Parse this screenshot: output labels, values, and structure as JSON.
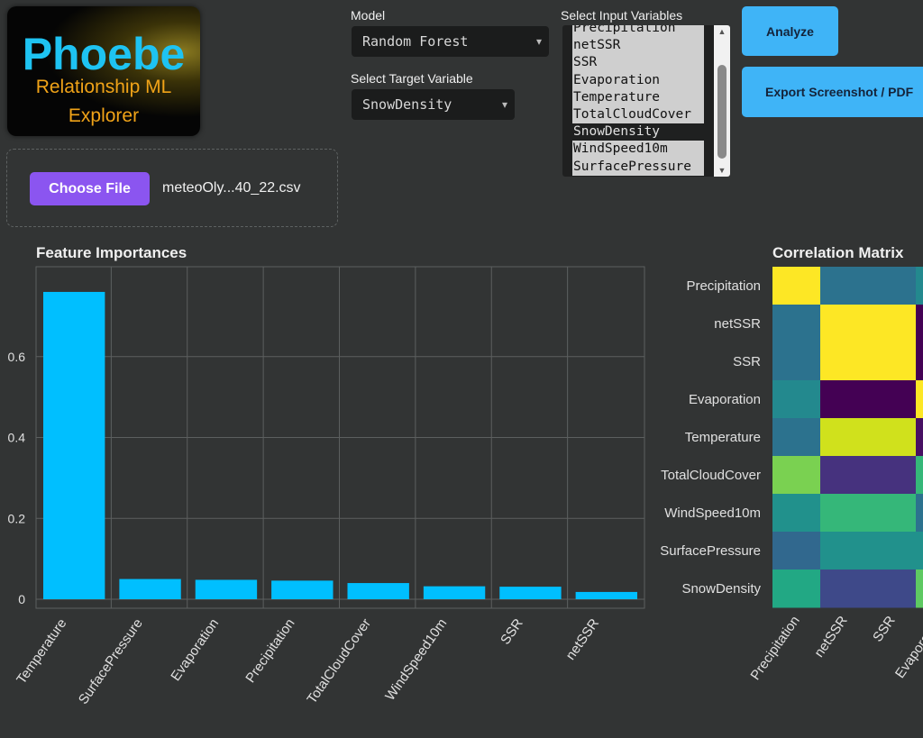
{
  "logo": {
    "title": "Phoebe",
    "subtitle_line1": "Relationship ML",
    "subtitle_line2": "Explorer"
  },
  "file": {
    "button_label": "Choose File",
    "filename": "meteoOly...40_22.csv"
  },
  "model": {
    "label": "Model",
    "selected": "Random Forest"
  },
  "target": {
    "label": "Select Target Variable",
    "selected": "SnowDensity"
  },
  "inputs": {
    "label": "Select Input Variables",
    "options": [
      {
        "name": "Precipitation",
        "selected": true
      },
      {
        "name": "netSSR",
        "selected": true
      },
      {
        "name": "SSR",
        "selected": true
      },
      {
        "name": "Evaporation",
        "selected": true
      },
      {
        "name": "Temperature",
        "selected": true
      },
      {
        "name": "TotalCloudCover",
        "selected": true
      },
      {
        "name": "SnowDensity",
        "selected": false
      },
      {
        "name": "WindSpeed10m",
        "selected": true
      },
      {
        "name": "SurfacePressure",
        "selected": true
      }
    ]
  },
  "actions": {
    "analyze": "Analyze",
    "export": "Export Screenshot / PDF"
  },
  "chart_data": [
    {
      "type": "bar",
      "title": "Feature Importances",
      "categories": [
        "Temperature",
        "SurfacePressure",
        "Evaporation",
        "Precipitation",
        "TotalCloudCover",
        "WindSpeed10m",
        "SSR",
        "netSSR"
      ],
      "values": [
        0.76,
        0.05,
        0.048,
        0.046,
        0.04,
        0.032,
        0.031,
        0.018
      ],
      "ylim": [
        0,
        0.8
      ],
      "yticks": [
        0,
        0.2,
        0.4,
        0.6
      ],
      "ytick_labels": [
        "0",
        "0.2",
        "0.4",
        "0.6"
      ],
      "bar_color": "#00bfff",
      "grid": true
    },
    {
      "type": "heatmap",
      "title": "Correlation Matrix",
      "row_labels": [
        "Precipitation",
        "netSSR",
        "SSR",
        "Evaporation",
        "Temperature",
        "TotalCloudCover",
        "WindSpeed10m",
        "SurfacePressure",
        "SnowDensity"
      ],
      "col_labels": [
        "Precipitation",
        "netSSR",
        "SSR",
        "Evaporation"
      ],
      "colormap": "viridis",
      "visible_colors": [
        [
          "#fde725",
          "#2c728e",
          "#2c728e",
          "#23898e"
        ],
        [
          "#2c728e",
          "#fde725",
          "#fde725",
          "#440154"
        ],
        [
          "#2c728e",
          "#fde725",
          "#fde725",
          "#440154"
        ],
        [
          "#23898e",
          "#440154",
          "#440154",
          "#fde725"
        ],
        [
          "#2c728e",
          "#d0e11c",
          "#d0e11c",
          "#471063"
        ],
        [
          "#7ad151",
          "#46327e",
          "#46327e",
          "#35b779"
        ],
        [
          "#21918c",
          "#35b779",
          "#35b779",
          "#2c728e"
        ],
        [
          "#31688e",
          "#21918c",
          "#21918c",
          "#21918c"
        ],
        [
          "#22a884",
          "#3e4989",
          "#3e4989",
          "#5ec962"
        ]
      ]
    }
  ]
}
